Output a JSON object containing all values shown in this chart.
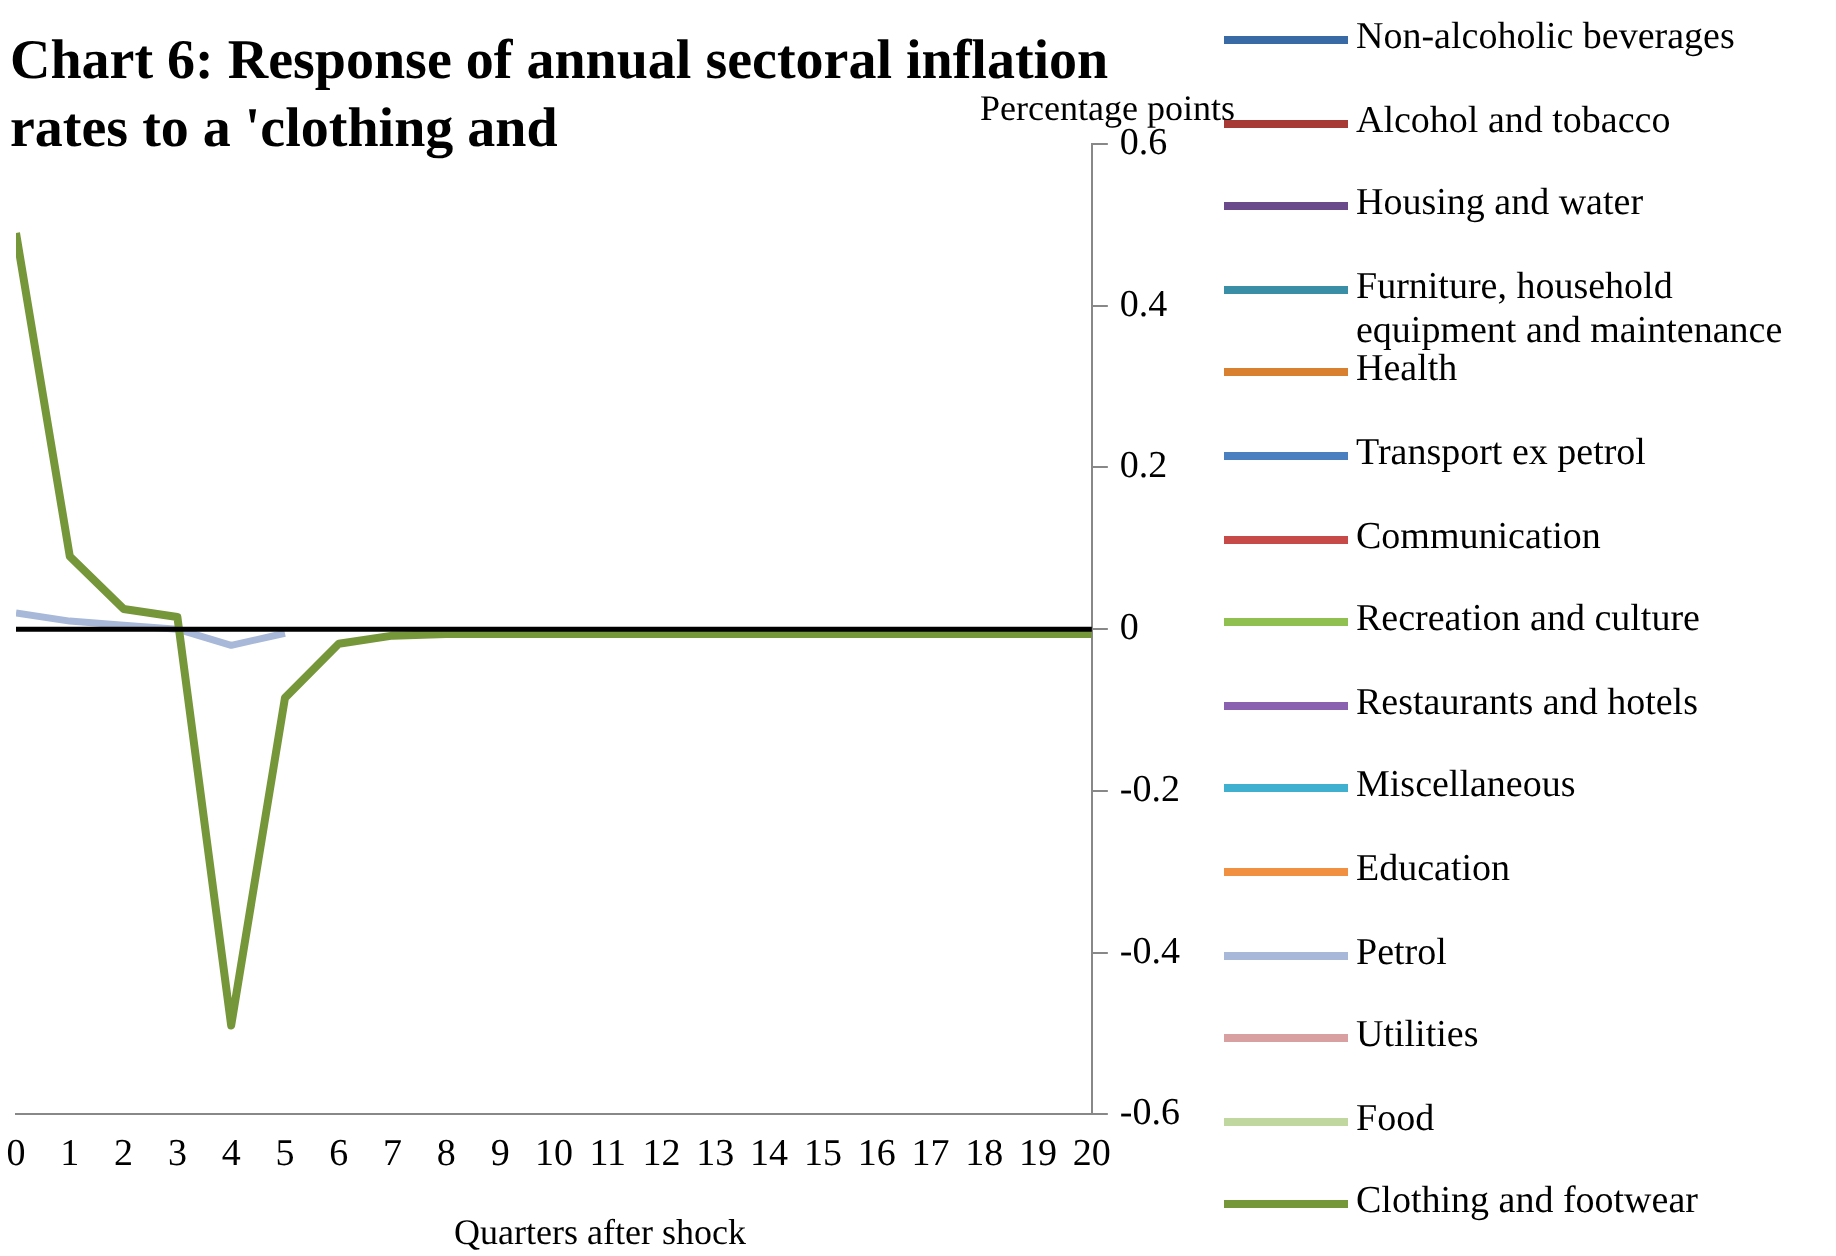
{
  "chart_data": {
    "type": "line",
    "title": "Chart 6:  Response of annual sectoral inflation rates to a 'clothing and",
    "ylabel": "Percentage points",
    "xlabel": "Quarters after shock",
    "x": [
      0,
      1,
      2,
      3,
      4,
      5,
      6,
      7,
      8,
      9,
      10,
      11,
      12,
      13,
      14,
      15,
      16,
      17,
      18,
      19,
      20
    ],
    "xlim": [
      0,
      20
    ],
    "xticks": [
      0,
      1,
      2,
      3,
      4,
      5,
      6,
      7,
      8,
      9,
      10,
      11,
      12,
      13,
      14,
      15,
      16,
      17,
      18,
      19,
      20
    ],
    "ylim": [
      -0.6,
      0.6
    ],
    "yticks": [
      -0.6,
      -0.4,
      -0.2,
      0,
      0.2,
      0.4,
      0.6
    ],
    "grid": false,
    "legend": "right",
    "marker": "none",
    "ref_lines": [
      {
        "axis": "y",
        "value": 0,
        "color": "#000000"
      }
    ],
    "series": [
      {
        "name": "Non-alcoholic beverages",
        "color": "#3a6aa6",
        "values": [
          null,
          null,
          null,
          null,
          null,
          null,
          null,
          null,
          null,
          null,
          null,
          null,
          null,
          null,
          null,
          null,
          null,
          null,
          null,
          null,
          null
        ]
      },
      {
        "name": "Alcohol and tobacco",
        "color": "#a83a36",
        "values": [
          null,
          null,
          null,
          null,
          null,
          null,
          null,
          null,
          null,
          null,
          null,
          null,
          null,
          null,
          null,
          null,
          null,
          null,
          null,
          null,
          null
        ]
      },
      {
        "name": "Housing and water",
        "color": "#6a4a8a",
        "values": [
          null,
          null,
          null,
          null,
          null,
          null,
          null,
          null,
          null,
          null,
          null,
          null,
          null,
          null,
          null,
          null,
          null,
          null,
          null,
          null,
          null
        ]
      },
      {
        "name": "Furniture, household equipment and maintenance",
        "color": "#3a8fa6",
        "values": [
          null,
          null,
          null,
          null,
          null,
          null,
          null,
          null,
          null,
          null,
          null,
          null,
          null,
          null,
          null,
          null,
          null,
          null,
          null,
          null,
          null
        ]
      },
      {
        "name": "Health",
        "color": "#d98030",
        "values": [
          null,
          null,
          null,
          null,
          null,
          null,
          null,
          null,
          null,
          null,
          null,
          null,
          null,
          null,
          null,
          null,
          null,
          null,
          null,
          null,
          null
        ]
      },
      {
        "name": "Transport ex petrol",
        "color": "#4a7fc0",
        "values": [
          null,
          null,
          null,
          null,
          null,
          null,
          null,
          null,
          null,
          null,
          null,
          null,
          null,
          null,
          null,
          null,
          null,
          null,
          null,
          null,
          null
        ]
      },
      {
        "name": "Communication",
        "color": "#c84a48",
        "values": [
          null,
          null,
          null,
          null,
          null,
          null,
          null,
          null,
          null,
          null,
          null,
          null,
          null,
          null,
          null,
          null,
          null,
          null,
          null,
          null,
          null
        ]
      },
      {
        "name": "Recreation and culture",
        "color": "#90c050",
        "values": [
          null,
          null,
          null,
          null,
          null,
          null,
          null,
          null,
          null,
          null,
          null,
          null,
          null,
          null,
          null,
          null,
          null,
          null,
          null,
          null,
          null
        ]
      },
      {
        "name": "Restaurants and hotels",
        "color": "#8a60b0",
        "values": [
          null,
          null,
          null,
          null,
          null,
          null,
          null,
          null,
          null,
          null,
          null,
          null,
          null,
          null,
          null,
          null,
          null,
          null,
          null,
          null,
          null
        ]
      },
      {
        "name": "Miscellaneous",
        "color": "#40b0d0",
        "values": [
          null,
          null,
          null,
          null,
          null,
          null,
          null,
          null,
          null,
          null,
          null,
          null,
          null,
          null,
          null,
          null,
          null,
          null,
          null,
          null,
          null
        ]
      },
      {
        "name": "Education",
        "color": "#f09040",
        "values": [
          null,
          null,
          null,
          null,
          null,
          null,
          null,
          null,
          null,
          null,
          null,
          null,
          null,
          null,
          null,
          null,
          null,
          null,
          null,
          null,
          null
        ]
      },
      {
        "name": "Petrol",
        "color": "#a8b8d8",
        "values": [
          0.02,
          0.01,
          0.005,
          0,
          -0.02,
          -0.005,
          null,
          null,
          null,
          null,
          null,
          null,
          null,
          null,
          null,
          null,
          null,
          null,
          null,
          null,
          null
        ]
      },
      {
        "name": "Utilities",
        "color": "#d8a0a0",
        "values": [
          null,
          null,
          null,
          null,
          null,
          null,
          null,
          null,
          null,
          null,
          null,
          null,
          null,
          null,
          null,
          null,
          null,
          null,
          null,
          null,
          null
        ]
      },
      {
        "name": "Food",
        "color": "#c0d8a0",
        "values": [
          null,
          null,
          null,
          null,
          null,
          null,
          null,
          null,
          null,
          null,
          null,
          null,
          null,
          null,
          null,
          null,
          null,
          null,
          null,
          null,
          null
        ]
      },
      {
        "name": "Clothing and footwear",
        "color": "#76963a",
        "values": [
          0.49,
          0.09,
          0.025,
          0.015,
          -0.49,
          -0.085,
          -0.018,
          -0.008,
          -0.006,
          -0.006,
          -0.006,
          -0.006,
          -0.006,
          -0.006,
          -0.006,
          -0.006,
          -0.006,
          -0.006,
          -0.006,
          -0.006,
          -0.006
        ]
      }
    ]
  }
}
